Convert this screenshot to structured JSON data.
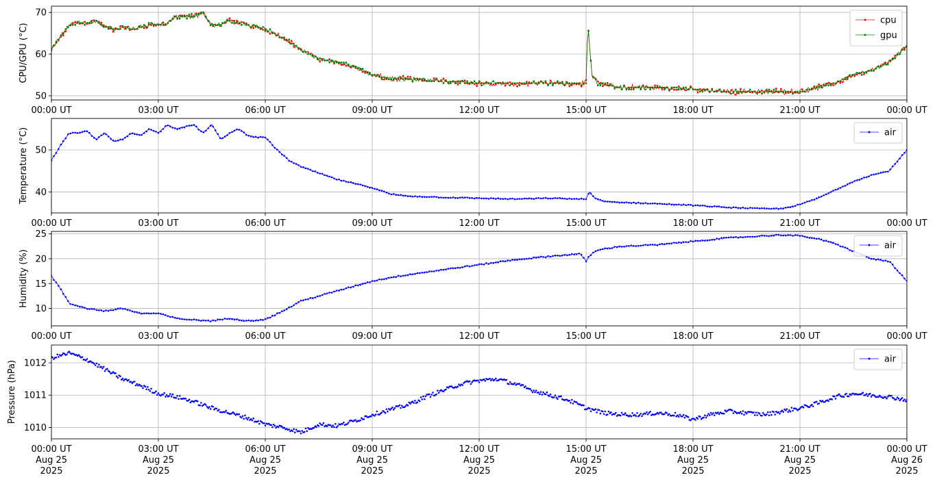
{
  "colors": {
    "cpu": "#ff0000",
    "gpu": "#008000",
    "air": "#0000ff",
    "grid": "#b0b0b0"
  },
  "x_ticks": [
    "00:00 UT",
    "03:00 UT",
    "06:00 UT",
    "09:00 UT",
    "12:00 UT",
    "15:00 UT",
    "18:00 UT",
    "21:00 UT",
    "00:00 UT"
  ],
  "x_ticks_bottom": [
    [
      "00:00 UT",
      "Aug 25",
      "2025"
    ],
    [
      "03:00 UT",
      "Aug 25",
      "2025"
    ],
    [
      "06:00 UT",
      "Aug 25",
      "2025"
    ],
    [
      "09:00 UT",
      "Aug 25",
      "2025"
    ],
    [
      "12:00 UT",
      "Aug 25",
      "2025"
    ],
    [
      "15:00 UT",
      "Aug 25",
      "2025"
    ],
    [
      "18:00 UT",
      "Aug 25",
      "2025"
    ],
    [
      "21:00 UT",
      "Aug 25",
      "2025"
    ],
    [
      "00:00 UT",
      "Aug 26",
      "2025"
    ]
  ],
  "chart_data": [
    {
      "type": "line",
      "ylabel": "CPU/GPU (°C)",
      "xlim": [
        "2025-08-25 00:00",
        "2025-08-26 00:00"
      ],
      "ylim": [
        49,
        71.5
      ],
      "yticks": [
        50,
        60,
        70
      ],
      "grid": true,
      "legend": "top-right",
      "series": [
        {
          "name": "cpu",
          "color": "#ff0000",
          "x": [
            "00:00",
            "00:15",
            "00:30",
            "00:45",
            "01:00",
            "01:15",
            "01:30",
            "01:45",
            "02:00",
            "02:15",
            "02:30",
            "02:45",
            "03:00",
            "03:15",
            "03:30",
            "03:45",
            "04:00",
            "04:15",
            "04:30",
            "04:45",
            "05:00",
            "05:15",
            "05:30",
            "05:45",
            "06:00",
            "06:30",
            "07:00",
            "07:30",
            "08:00",
            "08:30",
            "09:00",
            "09:30",
            "10:00",
            "11:00",
            "12:00",
            "13:00",
            "14:00",
            "14:50",
            "15:00",
            "15:03",
            "15:10",
            "15:20",
            "15:40",
            "16:00",
            "17:00",
            "18:00",
            "19:00",
            "20:00",
            "20:30",
            "21:00",
            "21:30",
            "22:00",
            "22:30",
            "23:00",
            "23:30",
            "24:00"
          ],
          "y": [
            61,
            64,
            67,
            67.5,
            67.5,
            68,
            66.5,
            66,
            66.5,
            66,
            66.5,
            67,
            67,
            67.5,
            69,
            69,
            69,
            70,
            67,
            67,
            68,
            67.5,
            67,
            66.5,
            66,
            64,
            61,
            59,
            58,
            57,
            55,
            54,
            54,
            53.5,
            53,
            53,
            53,
            53,
            53,
            67,
            55,
            53,
            52.5,
            52,
            52,
            51.5,
            51,
            51,
            51,
            51,
            52,
            53,
            55,
            56,
            58,
            62
          ]
        },
        {
          "name": "gpu",
          "color": "#008000",
          "x": [
            "00:00",
            "00:15",
            "00:30",
            "00:45",
            "01:00",
            "01:15",
            "01:30",
            "01:45",
            "02:00",
            "02:15",
            "02:30",
            "02:45",
            "03:00",
            "03:15",
            "03:30",
            "03:45",
            "04:00",
            "04:15",
            "04:30",
            "04:45",
            "05:00",
            "05:15",
            "05:30",
            "05:45",
            "06:00",
            "06:30",
            "07:00",
            "07:30",
            "08:00",
            "08:30",
            "09:00",
            "09:30",
            "10:00",
            "11:00",
            "12:00",
            "13:00",
            "14:00",
            "14:50",
            "15:00",
            "15:03",
            "15:10",
            "15:20",
            "15:40",
            "16:00",
            "17:00",
            "18:00",
            "19:00",
            "20:00",
            "20:30",
            "21:00",
            "21:30",
            "22:00",
            "22:30",
            "23:00",
            "23:30",
            "24:00"
          ],
          "y": [
            61,
            64,
            67,
            67.5,
            67.5,
            68,
            66.5,
            66,
            66.5,
            66,
            66.5,
            67,
            67,
            67.5,
            69,
            69,
            69,
            70,
            67,
            67,
            68,
            67.5,
            67,
            66.5,
            66,
            64,
            61,
            59,
            58,
            57,
            55,
            54,
            54,
            53.5,
            53,
            53,
            53,
            53,
            53,
            67,
            55,
            53,
            52.5,
            52,
            52,
            51.5,
            51,
            51,
            51,
            51,
            52,
            53,
            55,
            56,
            58,
            62
          ]
        }
      ]
    },
    {
      "type": "line",
      "ylabel": "Temperature (°C)",
      "xlim": [
        "2025-08-25 00:00",
        "2025-08-26 00:00"
      ],
      "ylim": [
        35,
        57.5
      ],
      "yticks": [
        40,
        50
      ],
      "grid": true,
      "legend": "top-right",
      "series": [
        {
          "name": "air",
          "color": "#0000ff",
          "x": [
            "00:00",
            "00:15",
            "00:30",
            "00:45",
            "01:00",
            "01:15",
            "01:30",
            "01:45",
            "02:00",
            "02:15",
            "02:30",
            "02:45",
            "03:00",
            "03:15",
            "03:30",
            "03:45",
            "04:00",
            "04:15",
            "04:30",
            "04:45",
            "05:00",
            "05:15",
            "05:30",
            "05:45",
            "06:00",
            "06:20",
            "06:40",
            "07:00",
            "07:30",
            "08:00",
            "08:30",
            "09:00",
            "09:30",
            "10:00",
            "11:00",
            "12:00",
            "13:00",
            "14:00",
            "14:50",
            "15:00",
            "15:05",
            "15:15",
            "15:30",
            "16:00",
            "17:00",
            "18:00",
            "19:00",
            "20:00",
            "20:30",
            "21:00",
            "21:30",
            "22:00",
            "22:30",
            "23:00",
            "23:30",
            "24:00"
          ],
          "y": [
            47.5,
            51,
            54,
            54,
            54.5,
            52.5,
            54,
            52,
            52.5,
            54,
            53.5,
            55,
            54,
            56,
            55,
            55.5,
            56,
            54,
            56,
            52.5,
            54,
            55,
            53.5,
            53,
            53,
            50,
            47.5,
            46,
            44.5,
            43,
            42,
            41,
            39.5,
            39,
            38.7,
            38.5,
            38.3,
            38.5,
            38.3,
            38.3,
            40,
            38.5,
            37.7,
            37.5,
            37.2,
            36.8,
            36.3,
            36,
            36,
            37,
            38.5,
            40.5,
            42.5,
            44,
            45,
            50
          ]
        }
      ]
    },
    {
      "type": "line",
      "ylabel": "Humidity (%)",
      "xlim": [
        "2025-08-25 00:00",
        "2025-08-26 00:00"
      ],
      "ylim": [
        6.5,
        25.5
      ],
      "yticks": [
        10,
        15,
        20,
        25
      ],
      "grid": true,
      "legend": "top-right",
      "series": [
        {
          "name": "air",
          "color": "#0000ff",
          "x": [
            "00:00",
            "00:15",
            "00:30",
            "00:45",
            "01:00",
            "01:30",
            "02:00",
            "02:30",
            "03:00",
            "03:30",
            "04:00",
            "04:30",
            "05:00",
            "05:30",
            "06:00",
            "06:30",
            "07:00",
            "07:30",
            "08:00",
            "08:30",
            "09:00",
            "09:30",
            "10:00",
            "11:00",
            "12:00",
            "13:00",
            "14:00",
            "14:50",
            "15:00",
            "15:05",
            "15:15",
            "15:30",
            "16:00",
            "17:00",
            "18:00",
            "19:00",
            "20:00",
            "20:30",
            "21:00",
            "21:30",
            "22:00",
            "22:30",
            "23:00",
            "23:30",
            "24:00"
          ],
          "y": [
            16.5,
            14,
            11,
            10.5,
            10,
            9.5,
            10,
            9,
            9,
            8,
            7.7,
            7.5,
            8,
            7.5,
            7.8,
            9.5,
            11.5,
            12.5,
            13.5,
            14.5,
            15.5,
            16.2,
            16.8,
            17.8,
            18.8,
            19.8,
            20.5,
            21,
            19.5,
            20.5,
            21.5,
            22,
            22.5,
            22.8,
            23.5,
            24.2,
            24.6,
            24.8,
            24.6,
            24,
            23,
            21.5,
            20,
            19.5,
            15.5
          ]
        }
      ]
    },
    {
      "type": "scatter",
      "ylabel": "Pressure (hPa)",
      "xlim": [
        "2025-08-25 00:00",
        "2025-08-26 00:00"
      ],
      "ylim": [
        1009.65,
        1012.55
      ],
      "yticks": [
        1010,
        1011,
        1012
      ],
      "grid": true,
      "legend": "top-right",
      "series": [
        {
          "name": "air",
          "color": "#0000ff",
          "x": [
            "00:00",
            "00:30",
            "01:00",
            "01:30",
            "02:00",
            "02:30",
            "03:00",
            "03:30",
            "04:00",
            "04:30",
            "05:00",
            "05:30",
            "06:00",
            "06:30",
            "07:00",
            "07:30",
            "08:00",
            "08:30",
            "09:00",
            "09:30",
            "10:00",
            "10:30",
            "11:00",
            "11:30",
            "12:00",
            "12:30",
            "13:00",
            "13:30",
            "14:00",
            "14:30",
            "15:00",
            "15:30",
            "16:00",
            "16:30",
            "17:00",
            "17:30",
            "18:00",
            "18:30",
            "19:00",
            "19:30",
            "20:00",
            "20:30",
            "21:00",
            "21:30",
            "22:00",
            "22:30",
            "23:00",
            "23:30",
            "24:00"
          ],
          "y": [
            1012.15,
            1012.3,
            1012.1,
            1011.8,
            1011.5,
            1011.3,
            1011.05,
            1010.95,
            1010.8,
            1010.6,
            1010.45,
            1010.3,
            1010.1,
            1010.0,
            1009.85,
            1010.1,
            1010.05,
            1010.2,
            1010.4,
            1010.55,
            1010.7,
            1010.95,
            1011.15,
            1011.35,
            1011.45,
            1011.5,
            1011.35,
            1011.15,
            1011.0,
            1010.85,
            1010.6,
            1010.45,
            1010.4,
            1010.4,
            1010.45,
            1010.4,
            1010.25,
            1010.4,
            1010.5,
            1010.45,
            1010.4,
            1010.5,
            1010.6,
            1010.75,
            1010.95,
            1011.05,
            1011.0,
            1010.95,
            1010.85
          ]
        }
      ]
    }
  ]
}
